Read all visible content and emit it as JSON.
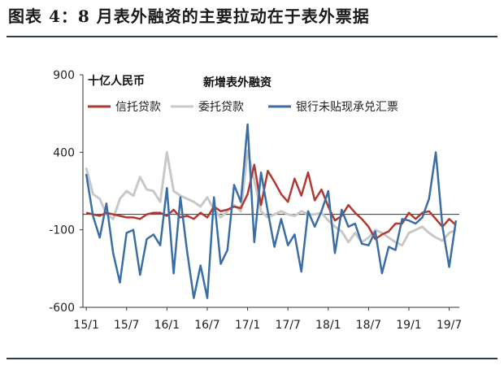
{
  "figure": {
    "title": "图表 4：8 月表外融资的主要拉动在于表外票据"
  },
  "chart_data": {
    "type": "line",
    "title": "新增表外融资",
    "ylabel": "十亿人民币",
    "ylim": [
      -600,
      900
    ],
    "yticks": [
      900,
      400,
      -100,
      -600
    ],
    "xtick_labels": [
      "15/1",
      "15/7",
      "16/1",
      "16/7",
      "17/1",
      "17/7",
      "18/1",
      "18/7",
      "19/1",
      "19/7"
    ],
    "x": [
      "15/1",
      "15/2",
      "15/3",
      "15/4",
      "15/5",
      "15/6",
      "15/7",
      "15/8",
      "15/9",
      "15/10",
      "15/11",
      "15/12",
      "16/1",
      "16/2",
      "16/3",
      "16/4",
      "16/5",
      "16/6",
      "16/7",
      "16/8",
      "16/9",
      "16/10",
      "16/11",
      "16/12",
      "17/1",
      "17/2",
      "17/3",
      "17/4",
      "17/5",
      "17/6",
      "17/7",
      "17/8",
      "17/9",
      "17/10",
      "17/11",
      "17/12",
      "18/1",
      "18/2",
      "18/3",
      "18/4",
      "18/5",
      "18/6",
      "18/7",
      "18/8",
      "18/9",
      "18/10",
      "18/11",
      "18/12",
      "19/1",
      "19/2",
      "19/3",
      "19/4",
      "19/5",
      "19/6",
      "19/7",
      "19/8"
    ],
    "grid": false,
    "legend_position": "top",
    "series": [
      {
        "name": "信托贷款",
        "color": "#b03a32",
        "values": [
          10,
          0,
          -10,
          10,
          0,
          -10,
          -20,
          -20,
          -30,
          0,
          10,
          10,
          -10,
          30,
          -20,
          -10,
          -30,
          10,
          -20,
          50,
          20,
          30,
          50,
          40,
          130,
          320,
          60,
          280,
          210,
          130,
          80,
          230,
          120,
          270,
          90,
          160,
          50,
          -40,
          -10,
          60,
          10,
          -30,
          -80,
          -160,
          -130,
          -110,
          -60,
          -60,
          10,
          -30,
          10,
          20,
          -30,
          -80,
          -30,
          -70
        ]
      },
      {
        "name": "委托贷款",
        "color": "#c8c8c8",
        "values": [
          300,
          130,
          100,
          0,
          -30,
          100,
          150,
          120,
          240,
          160,
          150,
          80,
          400,
          150,
          120,
          100,
          80,
          50,
          110,
          30,
          -20,
          20,
          60,
          20,
          410,
          220,
          20,
          -20,
          0,
          20,
          0,
          -10,
          20,
          0,
          0,
          10,
          -40,
          -80,
          -110,
          -180,
          -120,
          -180,
          -150,
          -100,
          -120,
          -150,
          -180,
          -200,
          -120,
          -100,
          -80,
          -120,
          -150,
          -170,
          -120,
          -100
        ]
      },
      {
        "name": "银行未贴现承兑汇票",
        "color": "#3a6ea5",
        "values": [
          260,
          -10,
          -150,
          70,
          -250,
          -440,
          -120,
          -100,
          -390,
          -160,
          -130,
          -200,
          170,
          -380,
          110,
          -240,
          -540,
          -330,
          -540,
          110,
          -320,
          -230,
          190,
          80,
          580,
          -180,
          270,
          20,
          -210,
          -30,
          -200,
          -130,
          -370,
          20,
          -80,
          20,
          150,
          -250,
          30,
          -80,
          -60,
          -190,
          -200,
          -110,
          -380,
          -210,
          -230,
          -30,
          -40,
          -60,
          -20,
          100,
          400,
          -80,
          -340,
          -40
        ]
      }
    ]
  }
}
